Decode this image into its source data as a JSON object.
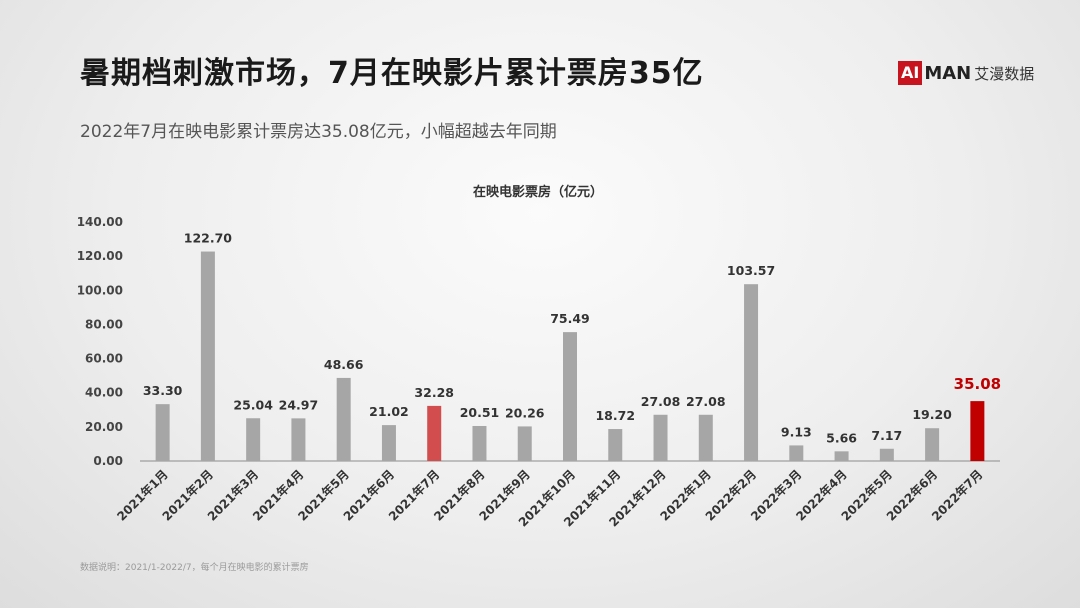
{
  "header": {
    "title": "暑期档刺激市场，7月在映影片累计票房35亿",
    "subtitle": "2022年7月在映电影累计票房达35.08亿元，小幅超越去年同期"
  },
  "logo": {
    "ai": "AI",
    "man": "MAN",
    "cn": "艾漫数据"
  },
  "footnote": "数据说明：2021/1-2022/7，每个月在映电影的累计票房",
  "colors": {
    "default_bar": "#a6a6a6",
    "highlight_2021": "#d24d4d",
    "highlight_2022": "#c00000",
    "highlight_label": "#c00000"
  },
  "chart_data": {
    "type": "bar",
    "title": "在映电影票房（亿元）",
    "categories": [
      "2021年1月",
      "2021年2月",
      "2021年3月",
      "2021年4月",
      "2021年5月",
      "2021年6月",
      "2021年7月",
      "2021年8月",
      "2021年9月",
      "2021年10月",
      "2021年11月",
      "2021年12月",
      "2022年1月",
      "2022年2月",
      "2022年3月",
      "2022年4月",
      "2022年5月",
      "2022年6月",
      "2022年7月"
    ],
    "values": [
      33.3,
      122.7,
      25.04,
      24.97,
      48.66,
      21.02,
      32.28,
      20.51,
      20.26,
      75.49,
      18.72,
      27.08,
      27.08,
      103.57,
      9.13,
      5.66,
      7.17,
      19.2,
      35.08
    ],
    "value_labels": [
      "33.30",
      "122.70",
      "25.04",
      "24.97",
      "48.66",
      "21.02",
      "32.28",
      "20.51",
      "20.26",
      "75.49",
      "18.72",
      "27.08",
      "27.08",
      "103.57",
      "9.13",
      "5.66",
      "7.17",
      "19.20",
      "35.08"
    ],
    "highlight": {
      "2021年7月": "highlight_2021",
      "2022年7月": "highlight_2022"
    },
    "ylim": [
      0,
      140
    ],
    "yticks": [
      "0.00",
      "20.00",
      "40.00",
      "60.00",
      "80.00",
      "100.00",
      "120.00",
      "140.00"
    ],
    "xlabel": "",
    "ylabel": "",
    "grid": false,
    "legend": "none"
  }
}
